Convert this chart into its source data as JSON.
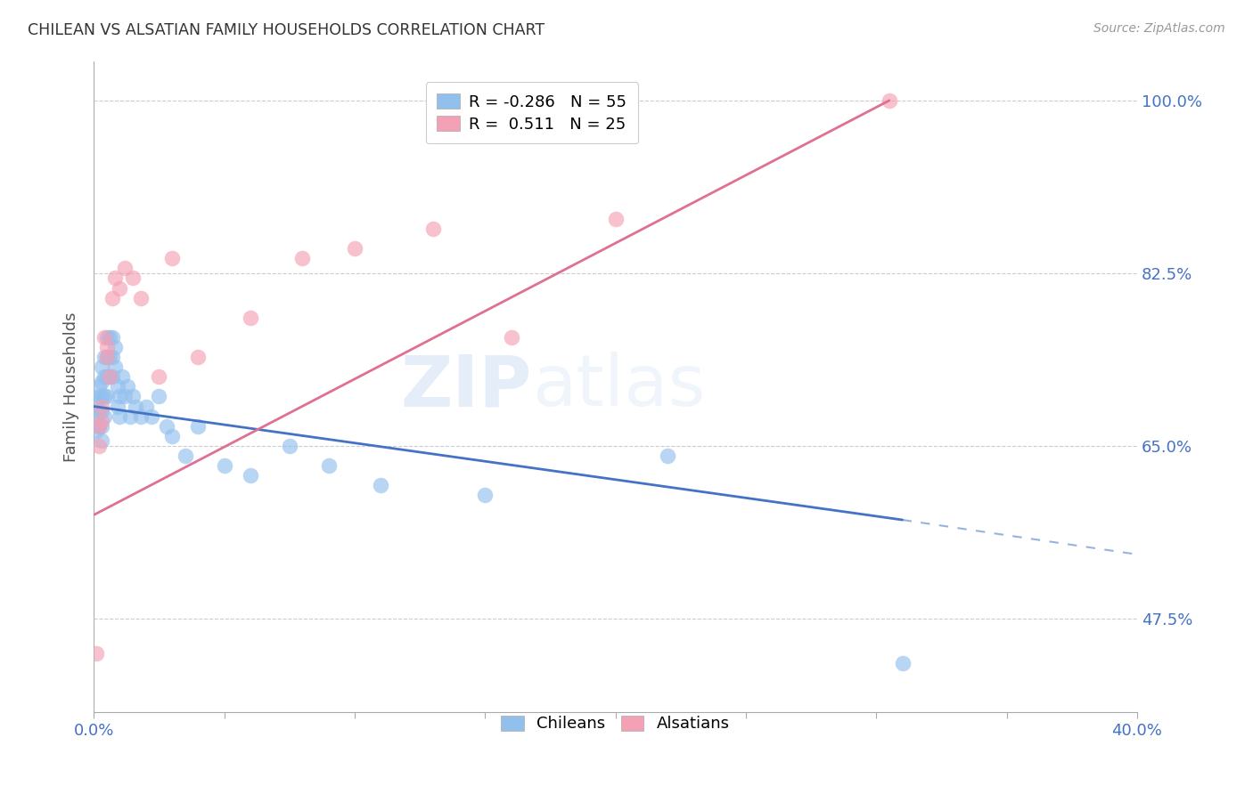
{
  "title": "CHILEAN VS ALSATIAN FAMILY HOUSEHOLDS CORRELATION CHART",
  "source": "Source: ZipAtlas.com",
  "ylabel": "Family Households",
  "xlim": [
    0.0,
    0.4
  ],
  "ylim": [
    0.38,
    1.04
  ],
  "ytick_positions": [
    0.475,
    0.65,
    0.825,
    1.0
  ],
  "ytick_labels": [
    "47.5%",
    "65.0%",
    "82.5%",
    "100.0%"
  ],
  "legend_blue_r": "-0.286",
  "legend_blue_n": "55",
  "legend_pink_r": "0.511",
  "legend_pink_n": "25",
  "blue_color": "#92c0ed",
  "pink_color": "#f4a0b5",
  "trend_blue_color": "#4472c4",
  "trend_pink_color": "#e07090",
  "watermark_zip": "ZIP",
  "watermark_atlas": "atlas",
  "chileans_x": [
    0.001,
    0.001,
    0.001,
    0.002,
    0.002,
    0.002,
    0.002,
    0.003,
    0.003,
    0.003,
    0.003,
    0.003,
    0.003,
    0.004,
    0.004,
    0.004,
    0.004,
    0.005,
    0.005,
    0.005,
    0.005,
    0.006,
    0.006,
    0.006,
    0.007,
    0.007,
    0.007,
    0.008,
    0.008,
    0.009,
    0.009,
    0.01,
    0.01,
    0.011,
    0.012,
    0.013,
    0.014,
    0.015,
    0.016,
    0.018,
    0.02,
    0.022,
    0.025,
    0.028,
    0.03,
    0.035,
    0.04,
    0.05,
    0.06,
    0.075,
    0.09,
    0.11,
    0.15,
    0.22,
    0.31
  ],
  "chileans_y": [
    0.695,
    0.68,
    0.665,
    0.71,
    0.7,
    0.685,
    0.67,
    0.73,
    0.715,
    0.7,
    0.685,
    0.67,
    0.655,
    0.74,
    0.72,
    0.7,
    0.68,
    0.76,
    0.74,
    0.72,
    0.7,
    0.76,
    0.74,
    0.72,
    0.76,
    0.74,
    0.72,
    0.75,
    0.73,
    0.71,
    0.69,
    0.7,
    0.68,
    0.72,
    0.7,
    0.71,
    0.68,
    0.7,
    0.69,
    0.68,
    0.69,
    0.68,
    0.7,
    0.67,
    0.66,
    0.64,
    0.67,
    0.63,
    0.62,
    0.65,
    0.63,
    0.61,
    0.6,
    0.64,
    0.43
  ],
  "alsatians_x": [
    0.001,
    0.002,
    0.002,
    0.003,
    0.003,
    0.004,
    0.005,
    0.005,
    0.006,
    0.007,
    0.008,
    0.01,
    0.012,
    0.015,
    0.018,
    0.025,
    0.03,
    0.04,
    0.06,
    0.08,
    0.1,
    0.13,
    0.16,
    0.2,
    0.305
  ],
  "alsatians_y": [
    0.44,
    0.67,
    0.65,
    0.69,
    0.675,
    0.76,
    0.75,
    0.74,
    0.72,
    0.8,
    0.82,
    0.81,
    0.83,
    0.82,
    0.8,
    0.72,
    0.84,
    0.74,
    0.78,
    0.84,
    0.85,
    0.87,
    0.76,
    0.88,
    1.0
  ],
  "trend_blue_x0": 0.0,
  "trend_blue_y0": 0.69,
  "trend_blue_x1": 0.31,
  "trend_blue_y1": 0.575,
  "trend_blue_dash_x1": 0.4,
  "trend_blue_dash_y1": 0.54,
  "trend_pink_x0": 0.0,
  "trend_pink_y0": 0.58,
  "trend_pink_x1": 0.305,
  "trend_pink_y1": 1.0
}
